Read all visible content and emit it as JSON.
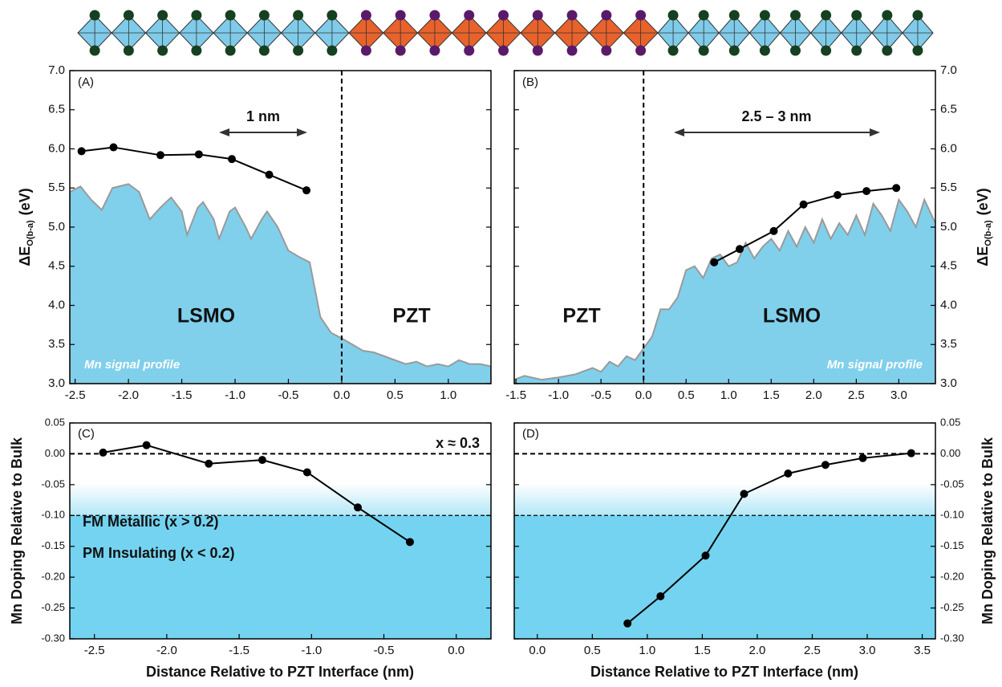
{
  "chart_data": [
    {
      "type": "line",
      "panel_label": "(A)",
      "xlim": [
        -2.55,
        1.4
      ],
      "ylim": [
        3.0,
        7.0
      ],
      "xticks": [
        -2.5,
        {
          "value": -2,
          "label": "-2.0"
        },
        -1.5,
        {
          "value": -1,
          "label": "-1.0"
        },
        -0.5,
        {
          "value": 0,
          "label": "0.0"
        },
        0.5,
        {
          "value": 1,
          "label": "1.0"
        }
      ],
      "yticks": [
        {
          "value": 3,
          "label": "3.0"
        },
        3.5,
        {
          "value": 4,
          "label": "4.0"
        },
        4.5,
        {
          "value": 5,
          "label": "5.0"
        },
        5.5,
        {
          "value": 6,
          "label": "6.0"
        },
        6.5,
        {
          "value": 7,
          "label": "7.0"
        }
      ],
      "ylabel": {
        "text": "ΔE",
        "sub": "O(b-a)",
        "unit": "(eV)"
      },
      "vline": 0,
      "annotations": [
        "1 nm",
        "LSMO",
        "PZT"
      ],
      "series": [
        {
          "name": "Mn signal profile",
          "type": "area",
          "color": "#80d0ec",
          "x": [
            -2.55,
            -2.45,
            -2.35,
            -2.25,
            -2.15,
            -2.0,
            -1.9,
            -1.8,
            -1.7,
            -1.6,
            -1.5,
            -1.45,
            -1.35,
            -1.3,
            -1.2,
            -1.15,
            -1.05,
            -1.0,
            -0.9,
            -0.85,
            -0.75,
            -0.7,
            -0.6,
            -0.5,
            -0.4,
            -0.3,
            -0.25,
            -0.2,
            -0.1,
            0,
            0.1,
            0.2,
            0.3,
            0.4,
            0.5,
            0.6,
            0.7,
            0.8,
            0.9,
            1.0,
            1.1,
            1.2,
            1.3,
            1.4
          ],
          "values": [
            5.45,
            5.52,
            5.35,
            5.22,
            5.5,
            5.55,
            5.45,
            5.1,
            5.25,
            5.38,
            5.2,
            4.9,
            5.25,
            5.32,
            5.1,
            4.85,
            5.2,
            5.25,
            5.0,
            4.85,
            5.1,
            5.2,
            5.0,
            4.7,
            4.62,
            4.55,
            4.2,
            3.85,
            3.65,
            3.58,
            3.5,
            3.42,
            3.4,
            3.35,
            3.3,
            3.25,
            3.28,
            3.22,
            3.25,
            3.22,
            3.3,
            3.25,
            3.25,
            3.22
          ]
        },
        {
          "type": "points",
          "color": "#000000",
          "x": [
            -2.44,
            -2.14,
            -1.7,
            -1.34,
            -1.03,
            -0.68,
            -0.33
          ],
          "values": [
            5.97,
            6.02,
            5.92,
            5.93,
            5.87,
            5.67,
            5.47
          ]
        }
      ]
    },
    {
      "type": "line",
      "panel_label": "(B)",
      "xlim": [
        -1.52,
        3.43
      ],
      "ylim": [
        3.0,
        7.0
      ],
      "xticks": [
        -1.5,
        {
          "value": -1,
          "label": "-1.0"
        },
        -0.5,
        {
          "value": 0,
          "label": "0.0"
        },
        0.5,
        {
          "value": 1,
          "label": "1.0"
        },
        1.5,
        {
          "value": 2,
          "label": "2.0"
        },
        2.5,
        {
          "value": 3,
          "label": "3.0"
        }
      ],
      "yticks": [
        {
          "value": 3,
          "label": "3.0"
        },
        3.5,
        {
          "value": 4,
          "label": "4.0"
        },
        4.5,
        {
          "value": 5,
          "label": "5.0"
        },
        5.5,
        {
          "value": 6,
          "label": "6.0"
        },
        6.5,
        {
          "value": 7,
          "label": "7.0"
        }
      ],
      "ylabel": {
        "text": "ΔE",
        "sub": "O(b-a)",
        "unit": "(eV)"
      },
      "vline": 0,
      "annotations": [
        "2.5 – 3 nm",
        "PZT",
        "LSMO"
      ],
      "series": [
        {
          "name": "Mn signal profile",
          "type": "area",
          "color": "#80d0ec",
          "x": [
            -1.52,
            -1.4,
            -1.2,
            -1.0,
            -0.8,
            -0.6,
            -0.5,
            -0.4,
            -0.3,
            -0.2,
            -0.1,
            0,
            0.1,
            0.2,
            0.3,
            0.4,
            0.5,
            0.6,
            0.7,
            0.8,
            0.9,
            1.0,
            1.1,
            1.2,
            1.3,
            1.4,
            1.5,
            1.6,
            1.7,
            1.8,
            1.9,
            2.0,
            2.1,
            2.2,
            2.3,
            2.4,
            2.5,
            2.6,
            2.7,
            2.8,
            2.9,
            3.0,
            3.1,
            3.2,
            3.3,
            3.43
          ],
          "values": [
            3.05,
            3.1,
            3.05,
            3.08,
            3.12,
            3.2,
            3.15,
            3.28,
            3.22,
            3.35,
            3.3,
            3.45,
            3.6,
            3.95,
            3.95,
            4.1,
            4.45,
            4.5,
            4.35,
            4.6,
            4.65,
            4.5,
            4.55,
            4.8,
            4.6,
            4.75,
            4.85,
            4.7,
            4.95,
            4.75,
            5.0,
            4.8,
            5.1,
            4.85,
            5.05,
            4.9,
            5.15,
            4.9,
            5.3,
            5.15,
            4.95,
            5.35,
            5.2,
            5.0,
            5.35,
            5.05
          ]
        },
        {
          "type": "points",
          "color": "#000000",
          "x": [
            0.83,
            1.13,
            1.53,
            1.88,
            2.28,
            2.62,
            2.97
          ],
          "values": [
            4.55,
            4.72,
            4.95,
            5.29,
            5.41,
            5.46,
            5.5
          ]
        }
      ]
    },
    {
      "type": "line",
      "panel_label": "(C)",
      "xlim": [
        -2.67,
        0.24
      ],
      "ylim": [
        -0.3,
        0.05
      ],
      "xticks": [
        -2.5,
        {
          "value": -2,
          "label": "-2.0"
        },
        -1.5,
        {
          "value": -1,
          "label": "-1.0"
        },
        -0.5,
        {
          "value": 0,
          "label": "0.0"
        }
      ],
      "yticks": [
        0.05,
        {
          "value": 0,
          "label": "0.00"
        },
        -0.05,
        {
          "value": -0.1,
          "label": "-0.10"
        },
        -0.15,
        {
          "value": -0.2,
          "label": "-0.20"
        },
        -0.25,
        {
          "value": -0.3,
          "label": "-0.30"
        }
      ],
      "ylabel": {
        "text": "Mn Doping Relative to Bulk"
      },
      "xlabel": "Distance Relative to PZT Interface (nm)",
      "hlines": [
        0,
        -0.1
      ],
      "shade_below": -0.1,
      "shade_color": "#74d3f0",
      "annotations": [
        "x ≈ 0.3",
        "FM Metallic (x > 0.2)",
        "PM Insulating (x < 0.2)"
      ],
      "series": [
        {
          "type": "points",
          "color": "#000000",
          "x": [
            -2.44,
            -2.14,
            -1.71,
            -1.34,
            -1.03,
            -0.68,
            -0.32
          ],
          "values": [
            0.002,
            0.014,
            -0.016,
            -0.01,
            -0.03,
            -0.087,
            -0.143
          ]
        }
      ]
    },
    {
      "type": "line",
      "panel_label": "(D)",
      "xlim": [
        -0.21,
        3.62
      ],
      "ylim": [
        -0.3,
        0.05
      ],
      "xticks": [
        {
          "value": 0,
          "label": "0.0"
        },
        0.5,
        {
          "value": 1,
          "label": "1.0"
        },
        1.5,
        {
          "value": 2,
          "label": "2.0"
        },
        2.5,
        {
          "value": 3,
          "label": "3.0"
        },
        3.5
      ],
      "yticks": [
        0.05,
        {
          "value": 0,
          "label": "0.00"
        },
        -0.05,
        {
          "value": -0.1,
          "label": "-0.10"
        },
        -0.15,
        {
          "value": -0.2,
          "label": "-0.20"
        },
        -0.25,
        {
          "value": -0.3,
          "label": "-0.30"
        }
      ],
      "ylabel": {
        "text": "Mn Doping Relative to Bulk"
      },
      "xlabel": "Distance Relative to PZT Interface (nm)",
      "hlines": [
        0,
        -0.1
      ],
      "shade_below": -0.1,
      "shade_color": "#74d3f0",
      "annotations": [],
      "series": [
        {
          "type": "points",
          "color": "#000000",
          "x": [
            0.82,
            1.12,
            1.53,
            1.88,
            2.28,
            2.62,
            2.96,
            3.4
          ],
          "values": [
            -0.275,
            -0.231,
            -0.165,
            -0.065,
            -0.032,
            -0.018,
            -0.007,
            0.001
          ]
        }
      ]
    }
  ]
}
